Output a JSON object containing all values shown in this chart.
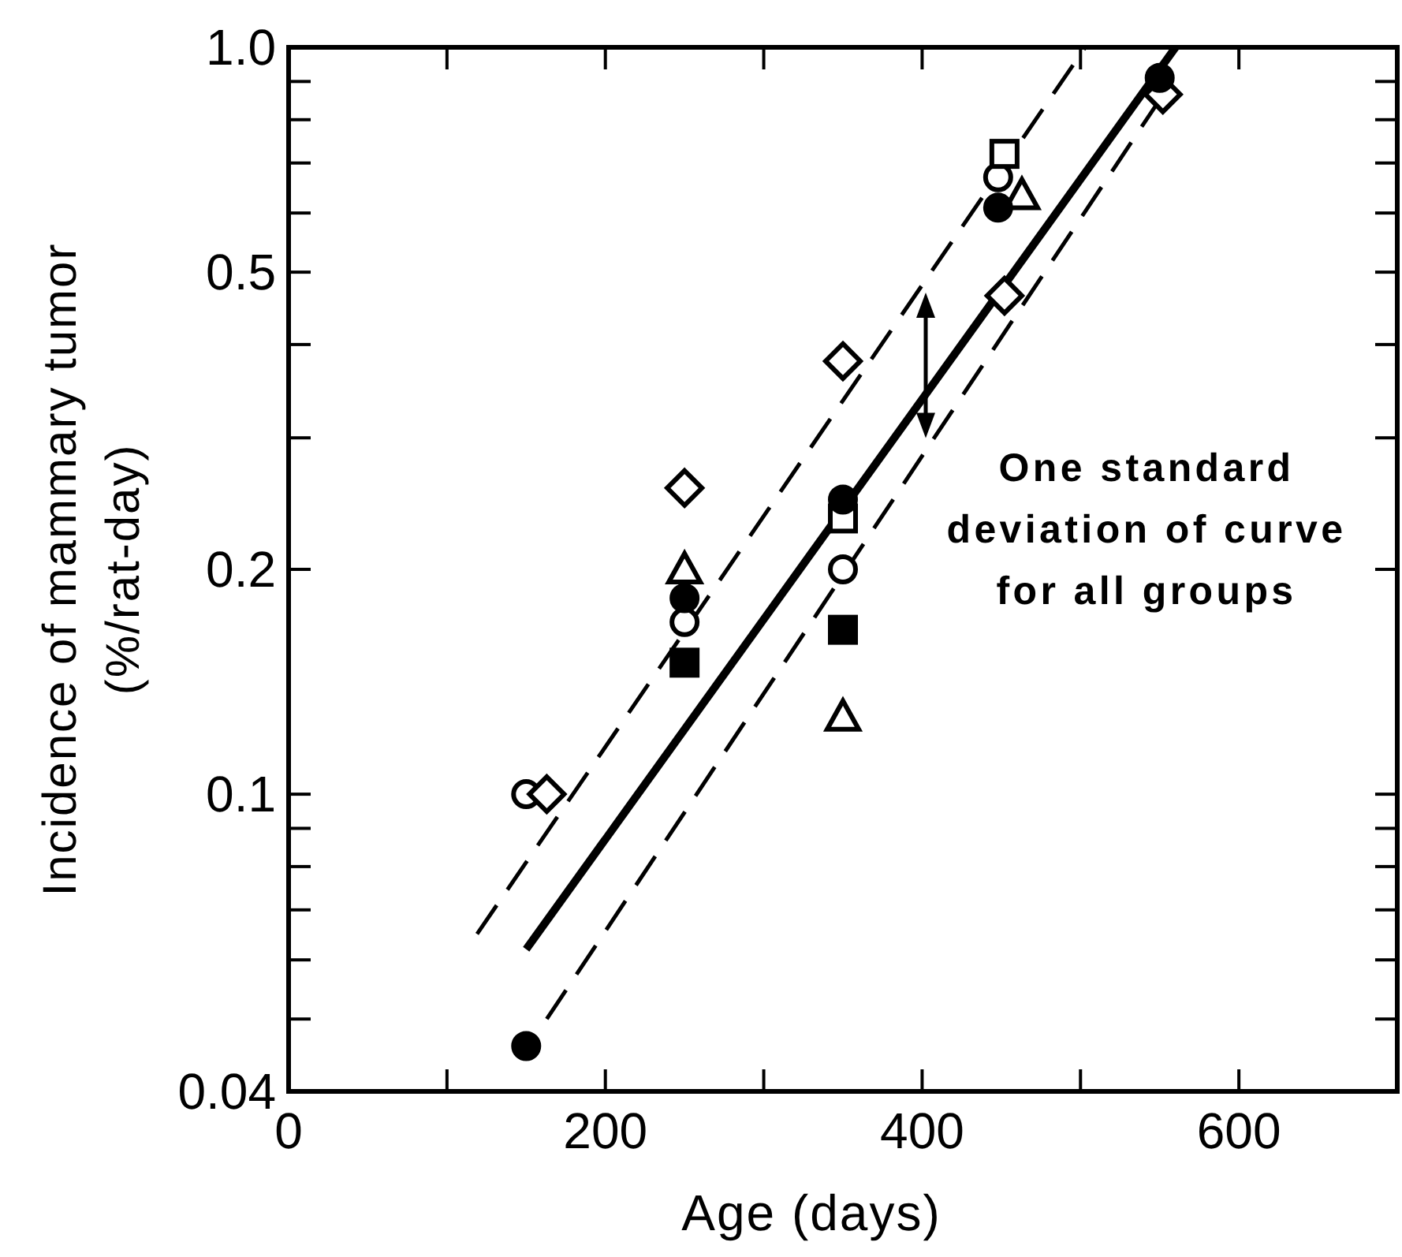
{
  "chart_data": {
    "type": "scatter",
    "xlabel": "Age (days)",
    "ylabel": "Incidence of mammary tumor\n(%/rat-day)",
    "xlim": [
      0,
      700
    ],
    "xticks": [
      0,
      {
        "value": 100,
        "label": null
      },
      200,
      {
        "value": 300,
        "label": null
      },
      400,
      {
        "value": 500,
        "label": null
      },
      600,
      {
        "value": 700,
        "label": null
      }
    ],
    "ylim": [
      0.04,
      1.0
    ],
    "log": true,
    "yticks": [
      0.04,
      {
        "value": 0.05,
        "label": null
      },
      {
        "value": 0.06,
        "label": null
      },
      {
        "value": 0.07,
        "label": null
      },
      {
        "value": 0.08,
        "label": null
      },
      {
        "value": 0.09,
        "label": null
      },
      0.1,
      0.2,
      {
        "value": 0.3,
        "label": null
      },
      {
        "value": 0.4,
        "label": null
      },
      0.5,
      {
        "value": 0.6,
        "label": null
      },
      {
        "value": 0.7,
        "label": null
      },
      {
        "value": 0.8,
        "label": null
      },
      {
        "value": 0.9,
        "label": null
      },
      {
        "value": 1.0,
        "label": "1.0"
      }
    ],
    "grid": false,
    "annotations": [
      "One standard\ndeviation of curve\nfor all groups"
    ],
    "series": [
      {
        "color": "#000000",
        "marker": "circle",
        "x": [
          150,
          250,
          350,
          448,
          550
        ],
        "values": [
          0.046,
          0.183,
          0.248,
          0.61,
          0.91
        ]
      },
      {
        "color": "#ffffff",
        "marker": "circle",
        "x": [
          150,
          250,
          350,
          448
        ],
        "values": [
          0.1,
          0.17,
          0.2,
          0.67
        ]
      },
      {
        "color": "#000000",
        "marker": "square",
        "x": [
          250,
          350
        ],
        "values": [
          0.15,
          0.166
        ]
      },
      {
        "color": "#ffffff",
        "marker": "square",
        "x": [
          350,
          452
        ],
        "values": [
          0.234,
          0.72
        ]
      },
      {
        "color": "#ffffff",
        "marker": "triangle",
        "x": [
          250,
          350,
          463
        ],
        "values": [
          0.2,
          0.127,
          0.634
        ]
      },
      {
        "color": "#ffffff",
        "marker": "diamond",
        "x": [
          163,
          250,
          350,
          452,
          552
        ],
        "values": [
          0.1,
          0.257,
          0.38,
          0.465,
          0.865
        ]
      },
      {
        "type": "line",
        "color": "#000000",
        "line_style": "solid",
        "x": [
          150,
          560
        ],
        "values": [
          0.062,
          1.0
        ]
      },
      {
        "type": "line",
        "color": "#000000",
        "line_style": "dashed",
        "x": [
          119,
          503
        ],
        "values": [
          0.065,
          1.0
        ]
      },
      {
        "type": "line",
        "color": "#000000",
        "line_style": "dashed",
        "x": [
          163,
          551
        ],
        "values": [
          0.05,
          0.857
        ]
      }
    ]
  }
}
